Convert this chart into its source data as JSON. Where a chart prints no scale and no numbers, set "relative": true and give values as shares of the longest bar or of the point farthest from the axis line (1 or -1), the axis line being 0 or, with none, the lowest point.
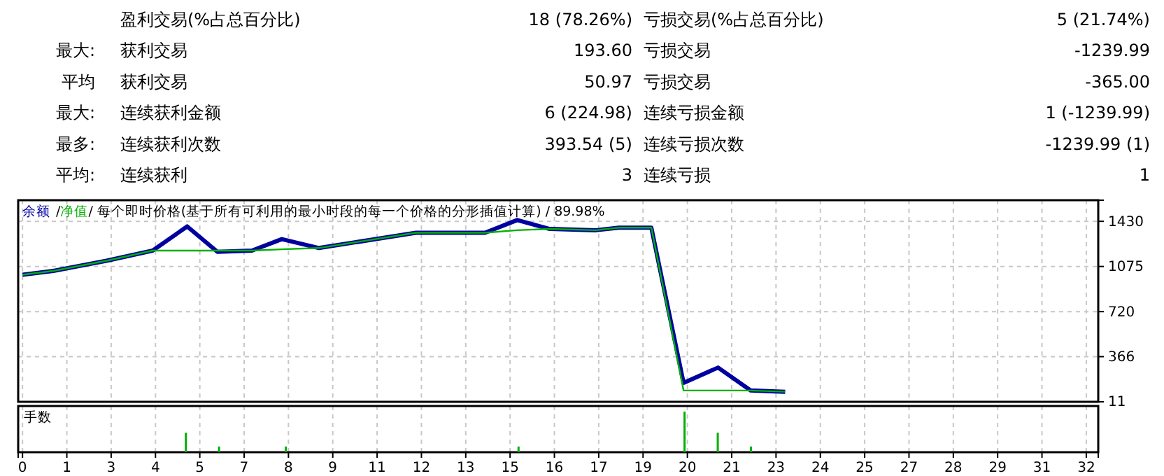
{
  "chart_data": [
    {
      "type": "other",
      "annotations": [
        "盈利交易(%占总百分比)",
        "18 (78.26%)",
        "亏损交易(%占总百分比)",
        "5 (21.74%)",
        "最大:",
        "获利交易",
        "193.60",
        "亏损交易",
        "-1239.99",
        "平均",
        "获利交易",
        "50.97",
        "亏损交易",
        "-365.00",
        "最大:",
        "连续获利金额",
        "6 (224.98)",
        "连续亏损金额",
        "1 (-1239.99)",
        "最多:",
        "连续获利次数",
        "393.54 (5)",
        "连续亏损次数",
        "-1239.99 (1)",
        "平均:",
        "连续获利",
        "3",
        "连续亏损",
        "1"
      ]
    },
    {
      "type": "line",
      "annotations": [
        "/"
      ],
      "title": "/ 每个即时价格(基于所有可利用的最小时段的每一个价格的分形插值计算) / 89.98%",
      "legend": "top left",
      "grid": true,
      "tick_labels": "y",
      "x": [
        0,
        0.93,
        2.53,
        3.92,
        4.96,
        5.87,
        6.91,
        7.81,
        8.93,
        11.85,
        13.93,
        14.9,
        15.88,
        17.27,
        17.96,
        18.94,
        19.91,
        20.95,
        21.93,
        22.97
      ],
      "series": [
        {
          "name": "余额",
          "color": "#0000a0",
          "values": [
            1010,
            1040,
            1120,
            1200,
            1390,
            1190,
            1200,
            1290,
            1220,
            1340,
            1340,
            1440,
            1370,
            1360,
            1380,
            1380,
            160,
            280,
            100,
            90
          ]
        },
        {
          "name": "净值",
          "color": "#00b000",
          "values": [
            1010,
            1040,
            1120,
            1200,
            1200,
            1200,
            1200,
            1210,
            1220,
            1340,
            1340,
            1360,
            1370,
            1360,
            1380,
            1380,
            100,
            100,
            100,
            90
          ]
        }
      ],
      "xlim": [
        -0.13,
        32.4
      ],
      "xticks": [
        {
          "value": 0,
          "label": null
        },
        {
          "value": 1.335,
          "label": null
        },
        {
          "value": 2.67,
          "label": null
        },
        {
          "value": 4.005,
          "label": null
        },
        {
          "value": 5.34,
          "label": null
        },
        {
          "value": 6.675,
          "label": null
        },
        {
          "value": 8.01,
          "label": null
        },
        {
          "value": 9.345,
          "label": null
        },
        {
          "value": 10.68,
          "label": null
        },
        {
          "value": 12.015,
          "label": null
        },
        {
          "value": 13.35,
          "label": null
        },
        {
          "value": 14.685,
          "label": null
        },
        {
          "value": 16.02,
          "label": null
        },
        {
          "value": 17.355,
          "label": null
        },
        {
          "value": 18.69,
          "label": null
        },
        {
          "value": 20.025,
          "label": null
        },
        {
          "value": 21.36,
          "label": null
        },
        {
          "value": 22.695,
          "label": null
        },
        {
          "value": 24.03,
          "label": null
        },
        {
          "value": 25.365,
          "label": null
        },
        {
          "value": 26.7,
          "label": null
        },
        {
          "value": 28.035,
          "label": null
        },
        {
          "value": 29.37,
          "label": null
        },
        {
          "value": 30.705,
          "label": null
        },
        {
          "value": 32.04,
          "label": null
        }
      ],
      "ylim": [
        11,
        1596
      ],
      "yticks": [
        11,
        366,
        720,
        1075,
        1430
      ]
    },
    {
      "type": "bar",
      "title": "手数",
      "relative": true,
      "grid": "x",
      "tick_labels": "x",
      "color": "#00b000",
      "x": [
        4.92,
        5.92,
        7.93,
        14.94,
        19.94,
        20.94,
        21.94
      ],
      "values": [
        0.48,
        0.14,
        0.14,
        0.14,
        1,
        0.48,
        0.14
      ],
      "xlim": [
        -0.13,
        32.4
      ],
      "xticks": [
        {
          "value": 0,
          "label": "0"
        },
        {
          "value": 1.335,
          "label": "1"
        },
        {
          "value": 2.67,
          "label": "3"
        },
        {
          "value": 4.005,
          "label": "4"
        },
        {
          "value": 5.34,
          "label": "5"
        },
        {
          "value": 6.675,
          "label": "7"
        },
        {
          "value": 8.01,
          "label": "8"
        },
        {
          "value": 9.345,
          "label": "9"
        },
        {
          "value": 10.68,
          "label": "11"
        },
        {
          "value": 12.015,
          "label": "12"
        },
        {
          "value": 13.35,
          "label": "13"
        },
        {
          "value": 14.685,
          "label": "15"
        },
        {
          "value": 16.02,
          "label": "16"
        },
        {
          "value": 17.355,
          "label": "17"
        },
        {
          "value": 18.69,
          "label": "19"
        },
        {
          "value": 20.025,
          "label": "20"
        },
        {
          "value": 21.36,
          "label": "21"
        },
        {
          "value": 22.695,
          "label": "23"
        },
        {
          "value": 24.03,
          "label": "24"
        },
        {
          "value": 25.365,
          "label": "25"
        },
        {
          "value": 26.7,
          "label": "27"
        },
        {
          "value": 28.035,
          "label": "28"
        },
        {
          "value": 29.37,
          "label": "29"
        },
        {
          "value": 30.705,
          "label": "31"
        },
        {
          "value": 32.04,
          "label": "32"
        }
      ]
    }
  ]
}
